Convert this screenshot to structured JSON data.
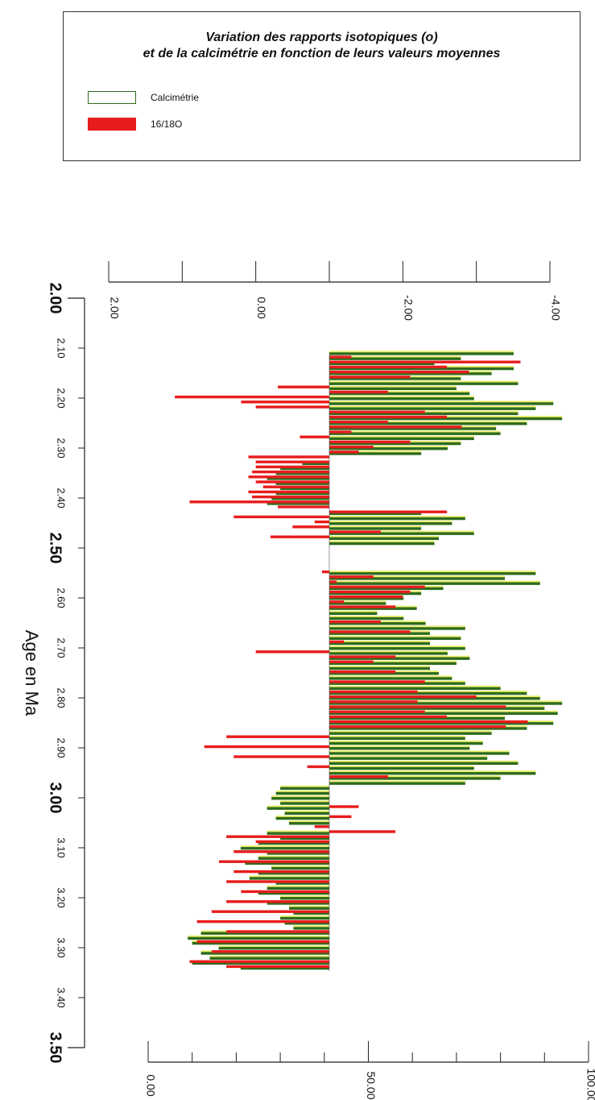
{
  "legend": {
    "title_line1": "Variation des rapports isotopiques (o)",
    "title_line2": "et de la calcimétrie en fonction de leurs valeurs moyennes",
    "items": [
      {
        "label": "Calcimétrie",
        "color": "#2e6b1e"
      },
      {
        "label": "16/18O",
        "color": "#e81c1c"
      }
    ]
  },
  "chart_data": {
    "type": "bar",
    "orientation": "horizontal",
    "ylabel": "Age en Ma",
    "age_axis": {
      "range": [
        2.0,
        3.5
      ],
      "ticks": [
        "2.00",
        "2.10",
        "2.20",
        "2.30",
        "2.40",
        "2.50",
        "2.60",
        "2.70",
        "2.80",
        "2.90",
        "3.00",
        "3.10",
        "3.20",
        "3.30",
        "3.40",
        "3.50"
      ]
    },
    "isotope_axis": {
      "range": [
        2.0,
        -4.0
      ],
      "baseline": -1.0,
      "ticks": [
        "2.00",
        "0.00",
        "-2.00",
        "-4.00"
      ]
    },
    "calcimetry_axis": {
      "range": [
        0,
        100
      ],
      "baseline": 40,
      "ticks": [
        "0.00",
        "50.00",
        "100.00"
      ]
    },
    "series": [
      {
        "name": "16/18O",
        "color": "#e81c1c",
        "points": [
          [
            2.12,
            -1.3
          ],
          [
            2.13,
            -3.6
          ],
          [
            2.14,
            -2.6
          ],
          [
            2.15,
            -2.9
          ],
          [
            2.16,
            -2.1
          ],
          [
            2.18,
            -0.3
          ],
          [
            2.19,
            -1.8
          ],
          [
            2.2,
            1.1
          ],
          [
            2.21,
            0.2
          ],
          [
            2.22,
            0.0
          ],
          [
            2.23,
            -2.3
          ],
          [
            2.24,
            -2.6
          ],
          [
            2.25,
            -1.8
          ],
          [
            2.26,
            -2.8
          ],
          [
            2.27,
            -1.3
          ],
          [
            2.28,
            -0.6
          ],
          [
            2.29,
            -2.1
          ],
          [
            2.3,
            -1.6
          ],
          [
            2.31,
            -1.4
          ],
          [
            2.32,
            0.1
          ],
          [
            2.33,
            0.0
          ],
          [
            2.34,
            0.0
          ],
          [
            2.35,
            0.05
          ],
          [
            2.36,
            0.1
          ],
          [
            2.37,
            0.0
          ],
          [
            2.38,
            -0.1
          ],
          [
            2.39,
            0.1
          ],
          [
            2.4,
            0.05
          ],
          [
            2.41,
            0.9
          ],
          [
            2.42,
            -0.3
          ],
          [
            2.43,
            -2.6
          ],
          [
            2.44,
            0.3
          ],
          [
            2.45,
            -0.8
          ],
          [
            2.46,
            -0.5
          ],
          [
            2.47,
            -1.7
          ],
          [
            2.48,
            -0.2
          ],
          [
            2.55,
            -0.9
          ],
          [
            2.56,
            -1.6
          ],
          [
            2.57,
            -1.1
          ],
          [
            2.58,
            -2.3
          ],
          [
            2.59,
            -2.1
          ],
          [
            2.6,
            -2.0
          ],
          [
            2.61,
            -1.2
          ],
          [
            2.62,
            -1.9
          ],
          [
            2.65,
            -1.7
          ],
          [
            2.67,
            -2.1
          ],
          [
            2.69,
            -1.2
          ],
          [
            2.71,
            0.0
          ],
          [
            2.72,
            -1.9
          ],
          [
            2.73,
            -1.6
          ],
          [
            2.75,
            -1.9
          ],
          [
            2.77,
            -2.3
          ],
          [
            2.79,
            -2.2
          ],
          [
            2.8,
            -3.0
          ],
          [
            2.81,
            -2.2
          ],
          [
            2.82,
            -3.4
          ],
          [
            2.83,
            -2.3
          ],
          [
            2.84,
            -2.6
          ],
          [
            2.85,
            -3.7
          ],
          [
            2.86,
            -3.4
          ],
          [
            2.88,
            0.4
          ],
          [
            2.9,
            0.7
          ],
          [
            2.92,
            0.3
          ],
          [
            2.94,
            -0.7
          ],
          [
            2.96,
            -1.8
          ],
          [
            3.02,
            -1.4
          ],
          [
            3.04,
            -1.3
          ],
          [
            3.06,
            -0.8
          ],
          [
            3.07,
            -1.9
          ],
          [
            3.08,
            0.4
          ],
          [
            3.09,
            0.0
          ],
          [
            3.11,
            0.3
          ],
          [
            3.13,
            0.5
          ],
          [
            3.15,
            0.3
          ],
          [
            3.17,
            0.4
          ],
          [
            3.19,
            0.2
          ],
          [
            3.21,
            0.4
          ],
          [
            3.23,
            0.6
          ],
          [
            3.25,
            0.8
          ],
          [
            3.27,
            0.4
          ],
          [
            3.29,
            0.8
          ],
          [
            3.31,
            0.6
          ],
          [
            3.33,
            0.9
          ],
          [
            3.34,
            0.4
          ]
        ]
      },
      {
        "name": "Calcimétrie",
        "color": "#2e6b1e",
        "points": [
          [
            2.11,
            83
          ],
          [
            2.12,
            71
          ],
          [
            2.13,
            65
          ],
          [
            2.14,
            83
          ],
          [
            2.15,
            78
          ],
          [
            2.16,
            71
          ],
          [
            2.17,
            84
          ],
          [
            2.18,
            70
          ],
          [
            2.19,
            73
          ],
          [
            2.2,
            74
          ],
          [
            2.21,
            92
          ],
          [
            2.22,
            88
          ],
          [
            2.23,
            84
          ],
          [
            2.24,
            94
          ],
          [
            2.25,
            86
          ],
          [
            2.26,
            79
          ],
          [
            2.27,
            80
          ],
          [
            2.28,
            74
          ],
          [
            2.29,
            71
          ],
          [
            2.3,
            68
          ],
          [
            2.31,
            62
          ],
          [
            2.33,
            35
          ],
          [
            2.34,
            30
          ],
          [
            2.35,
            29
          ],
          [
            2.36,
            27
          ],
          [
            2.37,
            29
          ],
          [
            2.38,
            30
          ],
          [
            2.39,
            29
          ],
          [
            2.4,
            28
          ],
          [
            2.41,
            27
          ],
          [
            2.43,
            62
          ],
          [
            2.44,
            72
          ],
          [
            2.45,
            69
          ],
          [
            2.46,
            62
          ],
          [
            2.47,
            74
          ],
          [
            2.48,
            66
          ],
          [
            2.49,
            65
          ],
          [
            2.55,
            88
          ],
          [
            2.56,
            81
          ],
          [
            2.57,
            89
          ],
          [
            2.58,
            67
          ],
          [
            2.59,
            62
          ],
          [
            2.6,
            58
          ],
          [
            2.61,
            54
          ],
          [
            2.62,
            61
          ],
          [
            2.63,
            52
          ],
          [
            2.64,
            58
          ],
          [
            2.65,
            63
          ],
          [
            2.66,
            72
          ],
          [
            2.67,
            64
          ],
          [
            2.68,
            71
          ],
          [
            2.69,
            64
          ],
          [
            2.7,
            72
          ],
          [
            2.71,
            68
          ],
          [
            2.72,
            73
          ],
          [
            2.73,
            70
          ],
          [
            2.74,
            64
          ],
          [
            2.75,
            66
          ],
          [
            2.76,
            69
          ],
          [
            2.77,
            72
          ],
          [
            2.78,
            80
          ],
          [
            2.79,
            86
          ],
          [
            2.8,
            89
          ],
          [
            2.81,
            94
          ],
          [
            2.82,
            90
          ],
          [
            2.83,
            93
          ],
          [
            2.84,
            81
          ],
          [
            2.85,
            92
          ],
          [
            2.86,
            86
          ],
          [
            2.87,
            78
          ],
          [
            2.88,
            72
          ],
          [
            2.89,
            76
          ],
          [
            2.9,
            73
          ],
          [
            2.91,
            82
          ],
          [
            2.92,
            77
          ],
          [
            2.93,
            84
          ],
          [
            2.94,
            74
          ],
          [
            2.95,
            88
          ],
          [
            2.96,
            80
          ],
          [
            2.97,
            72
          ],
          [
            2.98,
            30
          ],
          [
            2.99,
            29
          ],
          [
            3.0,
            28
          ],
          [
            3.01,
            30
          ],
          [
            3.02,
            27
          ],
          [
            3.03,
            31
          ],
          [
            3.04,
            29
          ],
          [
            3.05,
            32
          ],
          [
            3.07,
            27
          ],
          [
            3.08,
            30
          ],
          [
            3.09,
            25
          ],
          [
            3.1,
            21
          ],
          [
            3.11,
            27
          ],
          [
            3.12,
            25
          ],
          [
            3.13,
            22
          ],
          [
            3.14,
            28
          ],
          [
            3.15,
            25
          ],
          [
            3.16,
            23
          ],
          [
            3.17,
            29
          ],
          [
            3.18,
            27
          ],
          [
            3.19,
            25
          ],
          [
            3.2,
            30
          ],
          [
            3.21,
            27
          ],
          [
            3.22,
            32
          ],
          [
            3.23,
            33
          ],
          [
            3.24,
            30
          ],
          [
            3.25,
            31
          ],
          [
            3.26,
            33
          ],
          [
            3.27,
            12
          ],
          [
            3.28,
            9
          ],
          [
            3.29,
            10
          ],
          [
            3.3,
            16
          ],
          [
            3.31,
            12
          ],
          [
            3.32,
            14
          ],
          [
            3.33,
            10
          ],
          [
            3.34,
            21
          ]
        ]
      }
    ],
    "grid": false,
    "legend_position": "top"
  }
}
